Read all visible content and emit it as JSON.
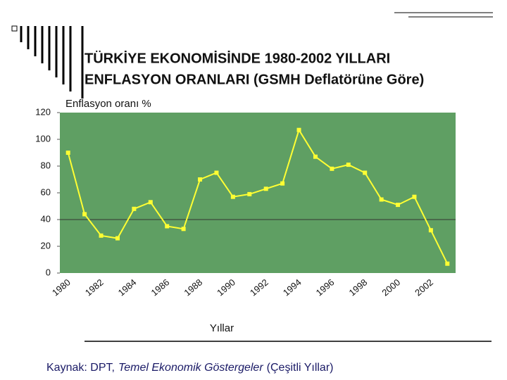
{
  "chart_data": {
    "type": "line",
    "title_lines": [
      "TÜRKİYE EKONOMİSİNDE 1980-2002 YILLARI",
      "ENFLASYON ORANLARI  (GSMH Deflatörüne Göre)"
    ],
    "y_label": "Enflasyon oranı %",
    "x_label": "Yıllar",
    "categories": [
      "1980",
      null,
      "1982",
      null,
      "1984",
      null,
      "1986",
      null,
      "1988",
      null,
      "1990",
      null,
      "1992",
      null,
      "1994",
      null,
      "1996",
      null,
      "1998",
      null,
      "2000",
      null,
      "2002",
      null
    ],
    "series": [
      {
        "color": "#ffff33",
        "values": [
          90,
          44,
          28,
          26,
          48,
          53,
          35,
          33,
          70,
          75,
          57,
          59,
          63,
          67,
          107,
          87,
          78,
          81,
          75,
          55,
          51,
          57,
          32,
          7
        ]
      }
    ],
    "ylim": [
      0,
      120
    ],
    "yticks": [
      0,
      20,
      40,
      60,
      80,
      100,
      120
    ],
    "reference_line": 40,
    "plot_color": "#5f9f63",
    "source": {
      "prefix": "Kaynak: DPT,",
      "italic": "Temel Ekonomik Göstergeler",
      "suffix": "(Çeşitli Yıllar)"
    }
  }
}
